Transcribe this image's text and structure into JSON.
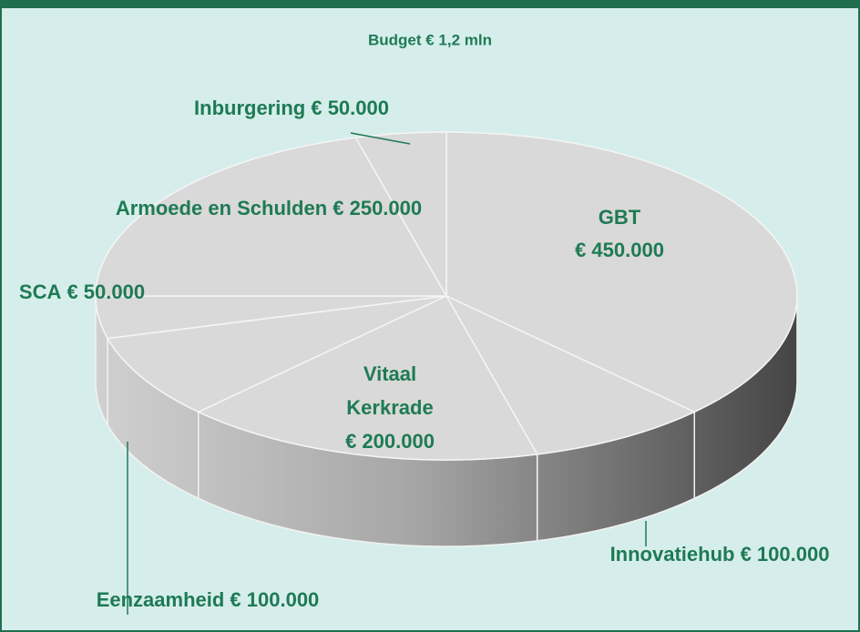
{
  "chart_data": {
    "type": "pie3d",
    "title": "Budget € 1,2 mln",
    "categories": [
      "GBT",
      "Innovatiehub",
      "Vitaal Kerkrade",
      "Eenzaamheid",
      "SCA",
      "Armoede en Schulden",
      "Inburgering"
    ],
    "values": [
      450000,
      100000,
      200000,
      100000,
      50000,
      250000,
      50000
    ],
    "value_labels": [
      "€ 450.000",
      "€ 100.000",
      "€ 200.000",
      "€ 100.000",
      "€ 50.000",
      "€ 250.000",
      "€ 50.000"
    ],
    "color": "#d9d9d9"
  }
}
